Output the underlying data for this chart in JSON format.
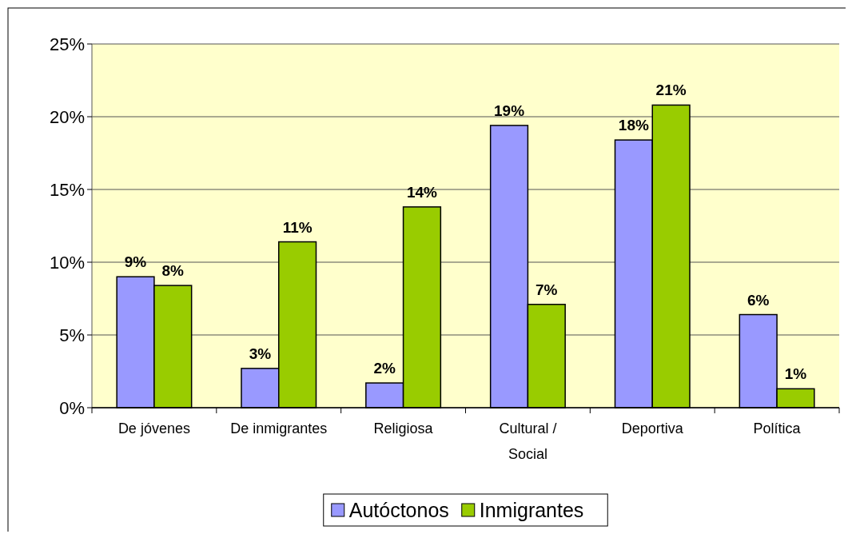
{
  "chart_data": {
    "type": "bar",
    "categories": [
      "De jóvenes",
      "De inmigrantes",
      "Religiosa",
      "Cultural / Social",
      "Deportiva",
      "Política"
    ],
    "series": [
      {
        "name": "Autóctonos",
        "color": "#9999ff",
        "values": [
          9.0,
          2.7,
          1.7,
          19.4,
          18.4,
          6.4
        ],
        "value_labels": [
          "9%",
          "3%",
          "2%",
          "19%",
          "18%",
          "6%"
        ]
      },
      {
        "name": "Inmigrantes",
        "color": "#99cc00",
        "values": [
          8.4,
          11.4,
          13.8,
          7.1,
          20.8,
          1.3
        ],
        "value_labels": [
          "8%",
          "11%",
          "14%",
          "7%",
          "21%",
          "1%"
        ]
      }
    ],
    "ylim": [
      0,
      25
    ],
    "yticks": [
      {
        "value": 0,
        "label": "0%"
      },
      {
        "value": 5,
        "label": "5%"
      },
      {
        "value": 10,
        "label": "10%"
      },
      {
        "value": 15,
        "label": "15%"
      },
      {
        "value": 20,
        "label": "20%"
      },
      {
        "value": 25,
        "label": "25%"
      }
    ],
    "grid": "y",
    "legend": "bottom"
  }
}
